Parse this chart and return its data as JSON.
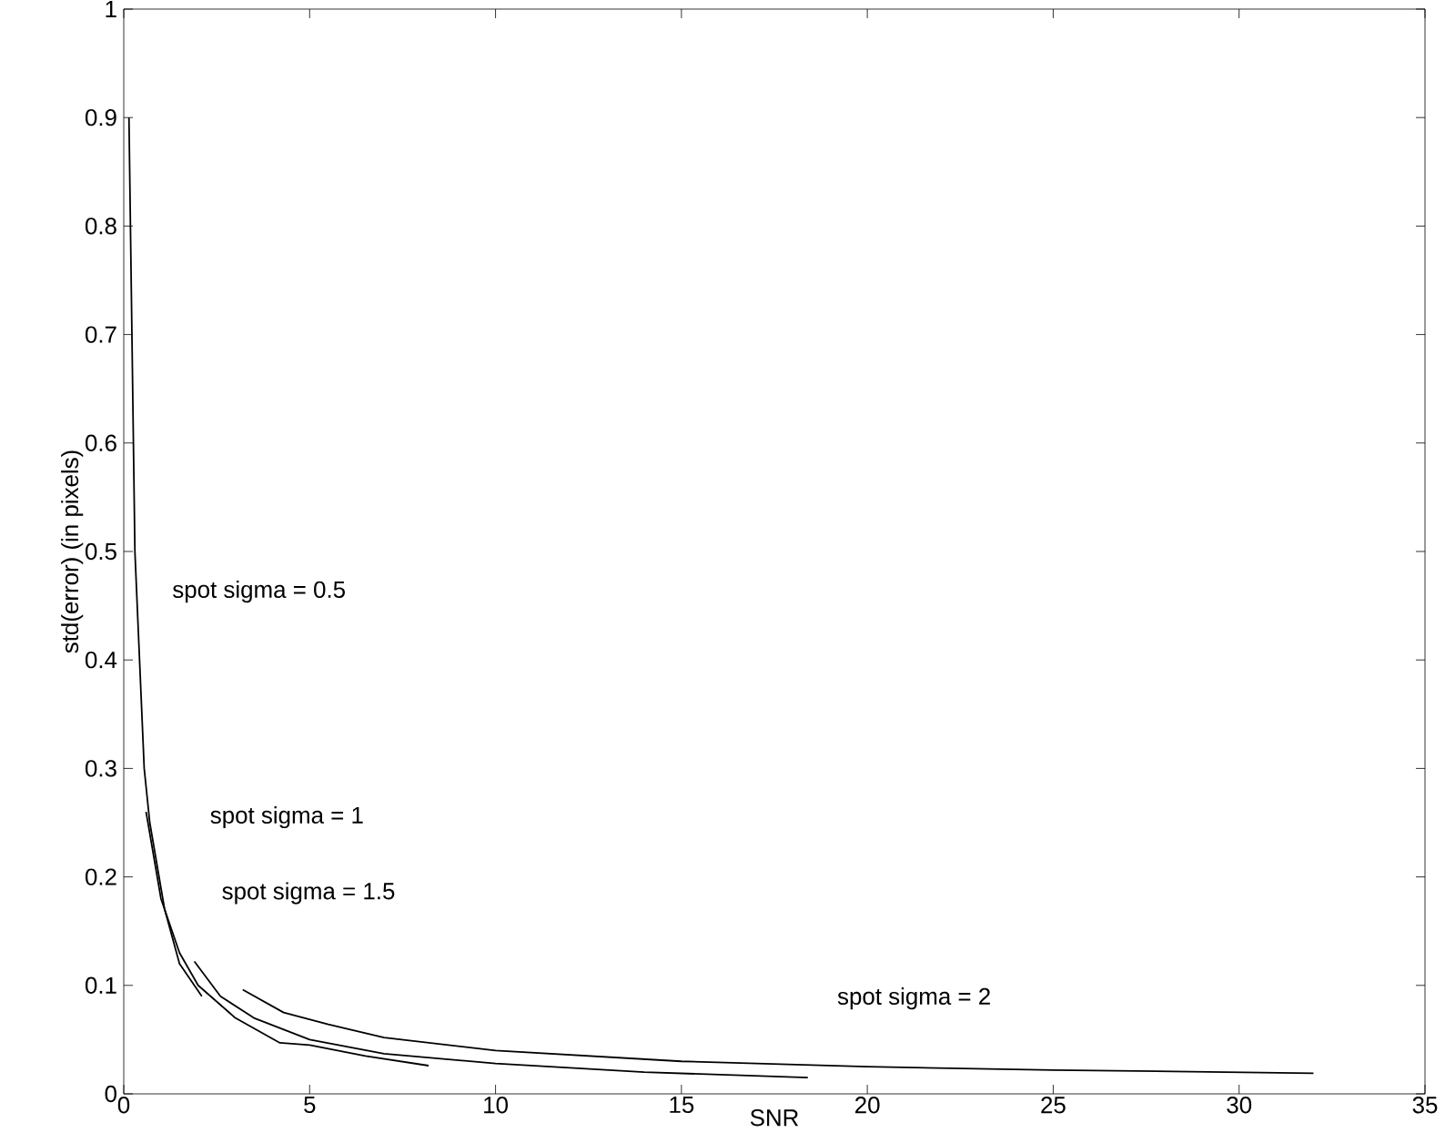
{
  "chart_data": {
    "type": "line",
    "xlabel": "SNR",
    "ylabel": "std(error) (in pixels)",
    "xlim": [
      0,
      35
    ],
    "ylim": [
      0,
      1
    ],
    "xticks": [
      0,
      5,
      10,
      15,
      20,
      25,
      30,
      35
    ],
    "yticks": [
      0,
      0.1,
      0.2,
      0.3,
      0.4,
      0.5,
      0.6,
      0.7,
      0.8,
      0.9,
      1
    ],
    "grid": false,
    "marker": "none",
    "line_style": "solid",
    "series": [
      {
        "color": "#000000",
        "x": [
          0.14,
          0.3,
          0.55,
          0.7,
          1.1,
          1.5,
          2.1
        ],
        "values": [
          0.9,
          0.5,
          0.3,
          0.25,
          0.17,
          0.12,
          0.09
        ]
      },
      {
        "color": "#000000",
        "x": [
          0.6,
          1.0,
          1.5,
          2.0,
          3.0,
          4.2,
          5.0,
          6.5,
          8.2
        ],
        "values": [
          0.26,
          0.18,
          0.13,
          0.1,
          0.07,
          0.047,
          0.045,
          0.035,
          0.026
        ]
      },
      {
        "color": "#000000",
        "x": [
          1.9,
          2.6,
          3.5,
          5.0,
          7.0,
          10.0,
          14.0,
          18.4
        ],
        "values": [
          0.122,
          0.09,
          0.07,
          0.05,
          0.037,
          0.028,
          0.02,
          0.015
        ]
      },
      {
        "color": "#000000",
        "x": [
          3.2,
          4.3,
          5.5,
          7.0,
          10.0,
          15.0,
          20.0,
          25.0,
          32.0
        ],
        "values": [
          0.096,
          0.075,
          0.064,
          0.052,
          0.04,
          0.03,
          0.025,
          0.022,
          0.019
        ]
      }
    ],
    "annotations": [
      "spot sigma = 0.5",
      "spot sigma = 1",
      "spot sigma = 1.5",
      "spot sigma = 2"
    ]
  }
}
